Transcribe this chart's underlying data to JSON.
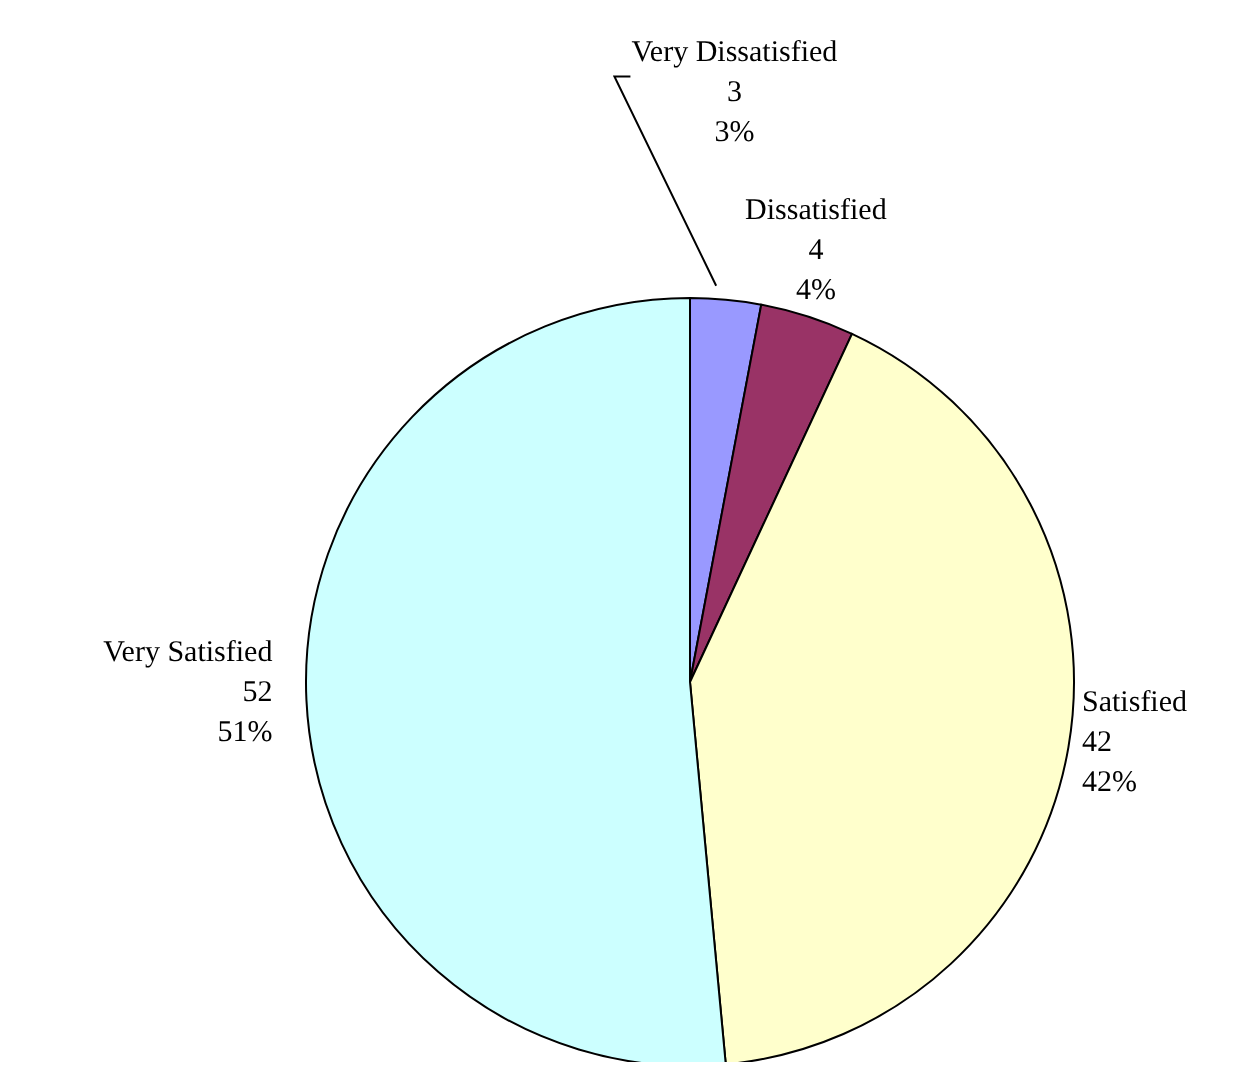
{
  "chart_data": {
    "type": "pie",
    "categories": [
      "Very Dissatisfied",
      "Dissatisfied",
      "Satisfied",
      "Very Satisfied"
    ],
    "values": [
      3,
      4,
      42,
      52
    ],
    "colors": [
      "#9999ff",
      "#993366",
      "#ffffcc",
      "#ccffff"
    ],
    "value_labels": [
      "3\n3%",
      "4\n4%",
      "42\n42%",
      "52\n51%"
    ],
    "legend": false
  }
}
